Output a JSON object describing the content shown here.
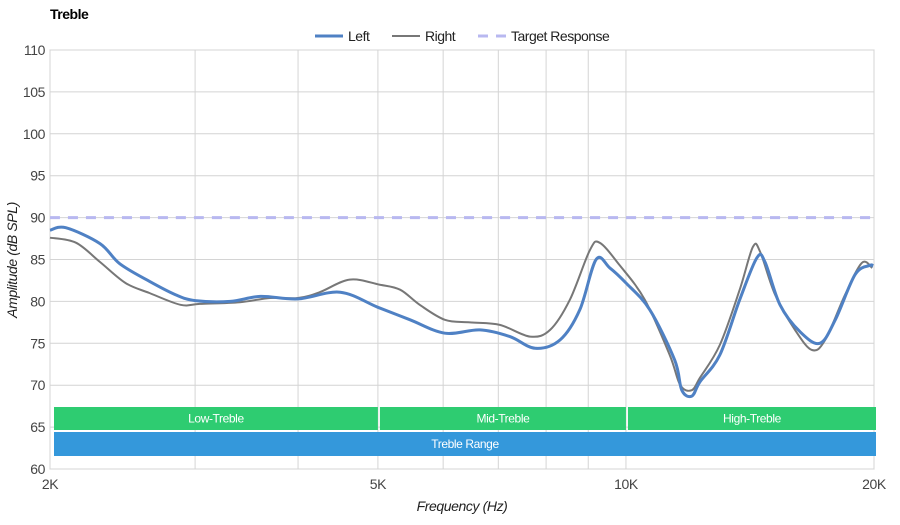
{
  "chart_data": {
    "type": "line",
    "title": "Treble",
    "xlabel": "Frequency (Hz)",
    "ylabel": "Amplitude (dB SPL)",
    "xscale": "log",
    "xlim_khz": [
      2,
      20
    ],
    "ylim": [
      60,
      110
    ],
    "yticks": [
      60,
      65,
      70,
      75,
      80,
      85,
      90,
      95,
      100,
      105,
      110
    ],
    "xticks": [
      {
        "khz": 2,
        "label": "2K"
      },
      {
        "khz": 5,
        "label": "5K"
      },
      {
        "khz": 10,
        "label": "10K"
      },
      {
        "khz": 20,
        "label": "20K"
      }
    ],
    "x_gridlines_khz": [
      2,
      3,
      4,
      5,
      6,
      7,
      8,
      9,
      10,
      20
    ],
    "grid": true,
    "legend_position": "top-center",
    "series": [
      {
        "name": "Left",
        "color": "#4f81c4",
        "style": "solid",
        "x_khz": [
          2.0,
          2.09,
          2.3,
          2.43,
          2.64,
          2.84,
          3.0,
          3.31,
          3.6,
          4.0,
          4.5,
          5.0,
          5.47,
          6.03,
          6.65,
          7.23,
          7.76,
          8.32,
          8.79,
          9.2,
          9.56,
          10.0,
          10.69,
          11.46,
          11.69,
          12.02,
          12.3,
          13.0,
          13.74,
          14.42,
          14.75,
          15.38,
          16.26,
          17.19,
          17.95,
          18.97,
          19.78,
          19.95
        ],
        "y": [
          88.5,
          88.8,
          86.9,
          84.5,
          82.4,
          80.8,
          80.1,
          80.0,
          80.6,
          80.3,
          81.1,
          79.3,
          77.8,
          76.2,
          76.6,
          75.8,
          74.4,
          75.4,
          79.0,
          85.0,
          84.0,
          82.2,
          79.0,
          73.0,
          69.4,
          68.7,
          70.4,
          73.6,
          80.2,
          85.2,
          84.7,
          79.6,
          76.4,
          75.0,
          77.8,
          83.2,
          84.3,
          84.2
        ]
      },
      {
        "name": "Right",
        "color": "#777777",
        "style": "solid",
        "x_khz": [
          2.0,
          2.15,
          2.3,
          2.47,
          2.64,
          2.88,
          3.04,
          3.4,
          3.7,
          4.0,
          4.25,
          4.62,
          5.02,
          5.32,
          5.62,
          6.03,
          6.47,
          7.03,
          7.65,
          8.09,
          8.55,
          9.04,
          9.29,
          9.83,
          10.54,
          11.3,
          11.64,
          12.02,
          12.3,
          13.0,
          13.74,
          14.26,
          14.55,
          15.17,
          16.04,
          16.82,
          17.45,
          18.45,
          19.33,
          19.9
        ],
        "y": [
          87.6,
          87.0,
          84.7,
          82.2,
          81.0,
          79.6,
          79.7,
          79.9,
          80.4,
          80.4,
          81.1,
          82.6,
          82.0,
          81.4,
          79.6,
          77.8,
          77.5,
          77.2,
          75.8,
          76.6,
          80.2,
          86.1,
          87.0,
          84.3,
          80.2,
          73.6,
          70.0,
          69.4,
          70.9,
          74.8,
          81.4,
          86.5,
          85.9,
          80.8,
          76.6,
          74.2,
          75.4,
          80.8,
          84.6,
          84.0
        ]
      },
      {
        "name": "Target Response",
        "color": "#b8b8f0",
        "style": "dashed",
        "x_khz": [
          2,
          20
        ],
        "y": [
          90,
          90
        ]
      }
    ],
    "bands": [
      {
        "label": "Low-Treble",
        "from_khz": 2,
        "to_khz": 5,
        "color": "#2ecc71",
        "row": 0
      },
      {
        "label": "Mid-Treble",
        "from_khz": 5,
        "to_khz": 10,
        "color": "#2ecc71",
        "row": 0
      },
      {
        "label": "High-Treble",
        "from_khz": 10,
        "to_khz": 20,
        "color": "#2ecc71",
        "row": 0
      },
      {
        "label": "Treble Range",
        "from_khz": 2,
        "to_khz": 20,
        "color": "#3498db",
        "row": 1
      }
    ]
  }
}
